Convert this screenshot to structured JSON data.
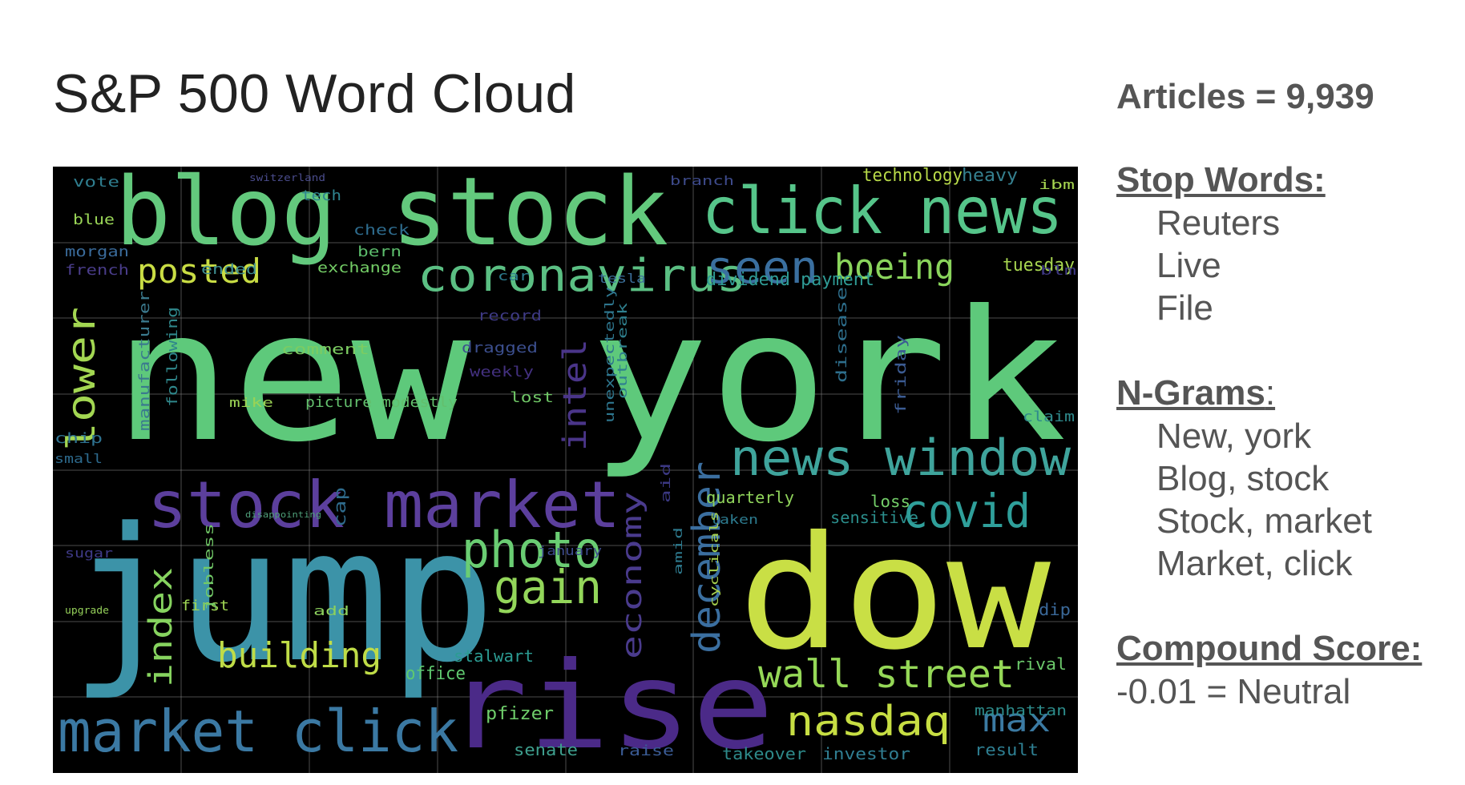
{
  "title": "S&P 500 Word Cloud",
  "side": {
    "articles": "Articles = 9,939",
    "stop_words": {
      "heading": "Stop Words:",
      "items": [
        "Reuters",
        "Live",
        "File"
      ]
    },
    "ngrams": {
      "heading": "N-Grams",
      "colon": ":",
      "items": [
        "New, york",
        "Blog, stock",
        "Stock, market",
        "Market, click"
      ]
    },
    "compound": {
      "heading": "Compound Score:",
      "value": "-0.01 = Neutral"
    }
  },
  "cloud": {
    "background": "#000000",
    "words": [
      {
        "text": "new york",
        "color": "#5ec97b",
        "size": 225,
        "rot": 0
      },
      {
        "text": "blog stock",
        "color": "#63c97d",
        "size": 118,
        "rot": 0
      },
      {
        "text": "click news",
        "color": "#56c58a",
        "size": 80,
        "rot": 0
      },
      {
        "text": "jump",
        "color": "#3c93a8",
        "size": 230,
        "rot": 0
      },
      {
        "text": "dow",
        "color": "#c9df45",
        "size": 195,
        "rot": 0
      },
      {
        "text": "rise",
        "color": "#4b2a88",
        "size": 150,
        "rot": 0
      },
      {
        "text": "stock market",
        "color": "#5c3f9d",
        "size": 80,
        "rot": 0
      },
      {
        "text": "market click",
        "color": "#3b79a3",
        "size": 72,
        "rot": 0
      },
      {
        "text": "coronavirus",
        "color": "#5bbf83",
        "size": 56,
        "rot": 0
      },
      {
        "text": "news window",
        "color": "#3fa49c",
        "size": 62,
        "rot": 0
      },
      {
        "text": "covid",
        "color": "#2f9f9a",
        "size": 58,
        "rot": 0
      },
      {
        "text": "photo",
        "color": "#6acd73",
        "size": 62,
        "rot": 0
      },
      {
        "text": "gain",
        "color": "#93d65a",
        "size": 58,
        "rot": 0
      },
      {
        "text": "wall street",
        "color": "#95d857",
        "size": 48,
        "rot": 0
      },
      {
        "text": "nasdaq",
        "color": "#c7de43",
        "size": 52,
        "rot": 0
      },
      {
        "text": "seen",
        "color": "#3a6f9f",
        "size": 56,
        "rot": 0
      },
      {
        "text": "boeing",
        "color": "#8ad55c",
        "size": 44,
        "rot": 0
      },
      {
        "text": "posted",
        "color": "#c9dd44",
        "size": 42,
        "rot": 0
      },
      {
        "text": "building",
        "color": "#bfdc47",
        "size": 44,
        "rot": 0
      },
      {
        "text": "max",
        "color": "#3b7aa2",
        "size": 40,
        "rot": 0
      },
      {
        "text": "lower",
        "color": "#a3d752",
        "size": 48,
        "rot": -90
      },
      {
        "text": "index",
        "color": "#86d35f",
        "size": 40,
        "rot": -90
      },
      {
        "text": "intel",
        "color": "#4a3589",
        "size": 40,
        "rot": -90
      },
      {
        "text": "december",
        "color": "#3b6fa0",
        "size": 48,
        "rot": -90
      },
      {
        "text": "economy",
        "color": "#4a3b8d",
        "size": 34,
        "rot": -90
      },
      {
        "text": "dividend payment",
        "color": "#2f9c96",
        "size": 22,
        "rot": 0
      },
      {
        "text": "technology",
        "color": "#b8da49",
        "size": 22,
        "rot": 0
      },
      {
        "text": "heavy",
        "color": "#35808f",
        "size": 22,
        "rot": 0
      },
      {
        "text": "tuesday",
        "color": "#a8d751",
        "size": 22,
        "rot": 0
      },
      {
        "text": "quarterly",
        "color": "#90d45b",
        "size": 20,
        "rot": 0
      },
      {
        "text": "loss",
        "color": "#74cf69",
        "size": 20,
        "rot": 0
      },
      {
        "text": "sensitive",
        "color": "#2b8e8c",
        "size": 20,
        "rot": 0
      },
      {
        "text": "pfizer",
        "color": "#6fce6b",
        "size": 22,
        "rot": 0
      },
      {
        "text": "stalwart",
        "color": "#2c9c93",
        "size": 20,
        "rot": 0
      },
      {
        "text": "office",
        "color": "#5fc96f",
        "size": 22,
        "rot": 0
      },
      {
        "text": "senate",
        "color": "#3e9f8e",
        "size": 20,
        "rot": 0
      },
      {
        "text": "takeover",
        "color": "#2e8a8a",
        "size": 20,
        "rot": 0
      },
      {
        "text": "investor",
        "color": "#307e92",
        "size": 20,
        "rot": 0
      },
      {
        "text": "result",
        "color": "#2e7f92",
        "size": 20,
        "rot": 0
      },
      {
        "text": "manhattan",
        "color": "#2d8d8c",
        "size": 18,
        "rot": 0
      },
      {
        "text": "rival",
        "color": "#6cc96b",
        "size": 20,
        "rot": 0
      },
      {
        "text": "dip",
        "color": "#3a6898",
        "size": 20,
        "rot": 0
      },
      {
        "text": "claim",
        "color": "#2f8a8c",
        "size": 18,
        "rot": 0
      },
      {
        "text": "blue",
        "color": "#9ad657",
        "size": 18,
        "rot": 0
      },
      {
        "text": "vote",
        "color": "#2f7e8f",
        "size": 18,
        "rot": 0
      },
      {
        "text": "tech",
        "color": "#2f8590",
        "size": 18,
        "rot": 0
      },
      {
        "text": "morgan",
        "color": "#3a6b9b",
        "size": 18,
        "rot": 0
      },
      {
        "text": "french",
        "color": "#4a3d8b",
        "size": 18,
        "rot": 0
      },
      {
        "text": "exchange",
        "color": "#74cd66",
        "size": 18,
        "rot": 0
      },
      {
        "text": "ended",
        "color": "#3e8e91",
        "size": 18,
        "rot": 0
      },
      {
        "text": "bern",
        "color": "#5cbd6c",
        "size": 18,
        "rot": 0
      },
      {
        "text": "check",
        "color": "#2e6c8e",
        "size": 18,
        "rot": 0
      },
      {
        "text": "comment",
        "color": "#7ccc62",
        "size": 18,
        "rot": 0
      },
      {
        "text": "dragged",
        "color": "#3c4f8e",
        "size": 18,
        "rot": 0
      },
      {
        "text": "record",
        "color": "#3e3a85",
        "size": 18,
        "rot": 0
      },
      {
        "text": "weekly",
        "color": "#43307f",
        "size": 18,
        "rot": 0
      },
      {
        "text": "mike",
        "color": "#9bd355",
        "size": 16,
        "rot": 0
      },
      {
        "text": "picture modestly",
        "color": "#63bf6d",
        "size": 18,
        "rot": 0
      },
      {
        "text": "lost",
        "color": "#6fc766",
        "size": 18,
        "rot": 0
      },
      {
        "text": "chip",
        "color": "#2e7290",
        "size": 18,
        "rot": 0
      },
      {
        "text": "small",
        "color": "#2d6a8d",
        "size": 16,
        "rot": 0
      },
      {
        "text": "first",
        "color": "#9fd554",
        "size": 18,
        "rot": 0
      },
      {
        "text": "add",
        "color": "#8cd05d",
        "size": 16,
        "rot": 0
      },
      {
        "text": "raise",
        "color": "#3b5c96",
        "size": 18,
        "rot": 0
      },
      {
        "text": "january",
        "color": "#3d4a8b",
        "size": 16,
        "rot": 0
      },
      {
        "text": "taken",
        "color": "#2d7b8f",
        "size": 16,
        "rot": 0
      },
      {
        "text": "car",
        "color": "#2c7d8f",
        "size": 16,
        "rot": 0
      },
      {
        "text": "tesla",
        "color": "#3b6d98",
        "size": 16,
        "rot": 0
      },
      {
        "text": "ibm",
        "color": "#a6d550",
        "size": 16,
        "rot": 0
      },
      {
        "text": "branch",
        "color": "#3e4b8c",
        "size": 16,
        "rot": 0
      },
      {
        "text": "blm",
        "color": "#3f3985",
        "size": 16,
        "rot": 0
      },
      {
        "text": "upgrade",
        "color": "#95d05a",
        "size": 12,
        "rot": 0
      },
      {
        "text": "sugar",
        "color": "#3f3a88",
        "size": 16,
        "rot": 0
      },
      {
        "text": "disappointing",
        "color": "#4f9f7a",
        "size": 11,
        "rot": 0
      },
      {
        "text": "switzerland",
        "color": "#4a4c8c",
        "size": 12,
        "rot": 0
      },
      {
        "text": "manufacturer",
        "color": "#3b7a8e",
        "size": 18,
        "rot": -90
      },
      {
        "text": "following",
        "color": "#2f878b",
        "size": 18,
        "rot": -90
      },
      {
        "text": "jobless",
        "color": "#72ca68",
        "size": 16,
        "rot": -90
      },
      {
        "text": "cap",
        "color": "#2f6c8d",
        "size": 20,
        "rot": -90
      },
      {
        "text": "unexpectedly",
        "color": "#2e768e",
        "size": 16,
        "rot": -90
      },
      {
        "text": "outbreak",
        "color": "#2f808f",
        "size": 16,
        "rot": -90
      },
      {
        "text": "friday",
        "color": "#3b5b92",
        "size": 18,
        "rot": -90
      },
      {
        "text": "disease",
        "color": "#2e6f8d",
        "size": 18,
        "rot": -90
      },
      {
        "text": "cyclicals",
        "color": "#a7d24f",
        "size": 14,
        "rot": -90
      },
      {
        "text": "aid",
        "color": "#3b3882",
        "size": 16,
        "rot": -90
      },
      {
        "text": "amid",
        "color": "#2e7a8e",
        "size": 14,
        "rot": -90
      }
    ]
  }
}
